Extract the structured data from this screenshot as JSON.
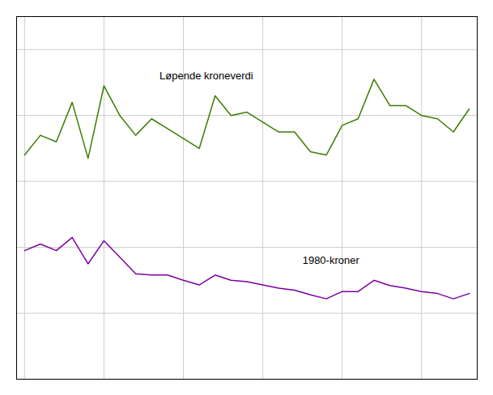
{
  "chart_data": {
    "type": "line",
    "x": [
      1980,
      1981,
      1982,
      1983,
      1984,
      1985,
      1986,
      1987,
      1988,
      1989,
      1990,
      1991,
      1992,
      1993,
      1994,
      1995,
      1996,
      1997,
      1998,
      1999,
      2000,
      2001,
      2002,
      2003,
      2004,
      2005,
      2006,
      2007,
      2008
    ],
    "series": [
      {
        "color": "#3a7d00",
        "values": [
          340,
          370,
          360,
          420,
          335,
          445,
          400,
          370,
          395,
          380,
          365,
          350,
          430,
          400,
          405,
          390,
          375,
          375,
          345,
          340,
          385,
          395,
          455,
          415,
          415,
          400,
          395,
          375,
          410
        ]
      },
      {
        "color": "#7b00a0",
        "values": [
          195,
          205,
          195,
          215,
          175,
          210,
          185,
          160,
          158,
          158,
          150,
          143,
          158,
          150,
          148,
          143,
          138,
          135,
          128,
          122,
          133,
          133,
          150,
          142,
          138,
          133,
          130,
          122,
          130
        ]
      }
    ],
    "annotations": [
      {
        "text": "Løpende kroneverdi",
        "x": 1988.5,
        "y": 455
      },
      {
        "text": "1980-kroner",
        "x": 1997.5,
        "y": 175
      }
    ],
    "xlim": [
      1979.5,
      2008.5
    ],
    "ylim": [
      0,
      550
    ],
    "xticks": [
      1980,
      1985,
      1990,
      1995,
      2000,
      2005
    ],
    "yticks": [
      0,
      100,
      200,
      300,
      400,
      500
    ],
    "grid": true,
    "tick_labels": false
  }
}
